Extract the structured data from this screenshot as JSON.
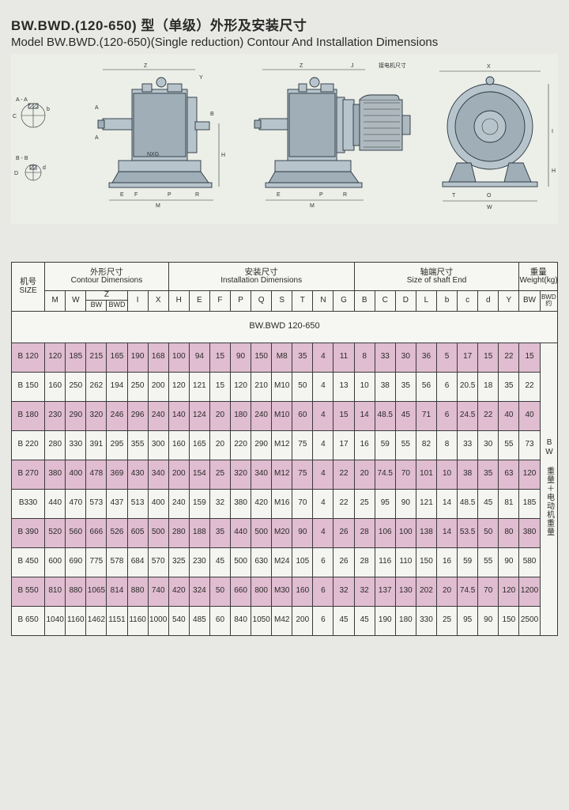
{
  "title": {
    "model_bold": "BW.BWD.(120-650)",
    "cn_suffix": " 型（单级）外形及安装尺寸",
    "en": "Model BW.BWD.(120-650)(Single reduction) Contour And Installation Dimensions"
  },
  "diagram": {
    "labels": [
      "Z",
      "Y",
      "A",
      "B",
      "C",
      "D",
      "d",
      "E",
      "F",
      "P",
      "R",
      "M",
      "J",
      "NXG",
      "H",
      "O",
      "T",
      "W",
      "X",
      "接电机尺寸",
      "A - A",
      "B - B"
    ],
    "colors": {
      "body": "#b7c4cc",
      "body_dark": "#9faeb7",
      "stroke": "#2a3640",
      "bg": "#eceee8"
    }
  },
  "table": {
    "groups": [
      {
        "cn": "机号",
        "en": "SIZE"
      },
      {
        "cn": "外形尺寸",
        "en": "Contour Dimensions"
      },
      {
        "cn": "安装尺寸",
        "en": "Installation Dimensions"
      },
      {
        "cn": "轴端尺寸",
        "en": "Size of shaft End"
      },
      {
        "cn": "重量",
        "en": "Weight(kg)"
      }
    ],
    "symbols": [
      "M",
      "W",
      "Z_BW",
      "Z_BWD",
      "I",
      "X",
      "H",
      "E",
      "F",
      "P",
      "Q",
      "S",
      "T",
      "N",
      "G",
      "B",
      "C",
      "D",
      "L",
      "b",
      "c",
      "d",
      "Y",
      "BW"
    ],
    "z_label": "Z",
    "z_sub": [
      "BW",
      "BWD"
    ],
    "bwd_note": "BWD 约",
    "model_line": "BW.BWD 120-650",
    "side_note": "BW 重量＋电动机重量",
    "rows": [
      {
        "id": "B 120",
        "v": [
          "120",
          "185",
          "215",
          "165",
          "190",
          "168",
          "100",
          "94",
          "15",
          "90",
          "150",
          "M8",
          "35",
          "4",
          "11",
          "8",
          "33",
          "30",
          "36",
          "5",
          "17",
          "15",
          "22",
          "15"
        ]
      },
      {
        "id": "B 150",
        "v": [
          "160",
          "250",
          "262",
          "194",
          "250",
          "200",
          "120",
          "121",
          "15",
          "120",
          "210",
          "M10",
          "50",
          "4",
          "13",
          "10",
          "38",
          "35",
          "56",
          "6",
          "20.5",
          "18",
          "35",
          "22"
        ]
      },
      {
        "id": "B 180",
        "v": [
          "230",
          "290",
          "320",
          "246",
          "296",
          "240",
          "140",
          "124",
          "20",
          "180",
          "240",
          "M10",
          "60",
          "4",
          "15",
          "14",
          "48.5",
          "45",
          "71",
          "6",
          "24.5",
          "22",
          "40",
          "40"
        ]
      },
      {
        "id": "B 220",
        "v": [
          "280",
          "330",
          "391",
          "295",
          "355",
          "300",
          "160",
          "165",
          "20",
          "220",
          "290",
          "M12",
          "75",
          "4",
          "17",
          "16",
          "59",
          "55",
          "82",
          "8",
          "33",
          "30",
          "55",
          "73"
        ]
      },
      {
        "id": "B 270",
        "v": [
          "380",
          "400",
          "478",
          "369",
          "430",
          "340",
          "200",
          "154",
          "25",
          "320",
          "340",
          "M12",
          "75",
          "4",
          "22",
          "20",
          "74.5",
          "70",
          "101",
          "10",
          "38",
          "35",
          "63",
          "120"
        ]
      },
      {
        "id": "B330",
        "v": [
          "440",
          "470",
          "573",
          "437",
          "513",
          "400",
          "240",
          "159",
          "32",
          "380",
          "420",
          "M16",
          "70",
          "4",
          "22",
          "25",
          "95",
          "90",
          "121",
          "14",
          "48.5",
          "45",
          "81",
          "185"
        ]
      },
      {
        "id": "B 390",
        "v": [
          "520",
          "560",
          "666",
          "526",
          "605",
          "500",
          "280",
          "188",
          "35",
          "440",
          "500",
          "M20",
          "90",
          "4",
          "26",
          "28",
          "106",
          "100",
          "138",
          "14",
          "53.5",
          "50",
          "80",
          "380"
        ]
      },
      {
        "id": "B 450",
        "v": [
          "600",
          "690",
          "775",
          "578",
          "684",
          "570",
          "325",
          "230",
          "45",
          "500",
          "630",
          "M24",
          "105",
          "6",
          "26",
          "28",
          "116",
          "110",
          "150",
          "16",
          "59",
          "55",
          "90",
          "580"
        ]
      },
      {
        "id": "B 550",
        "v": [
          "810",
          "880",
          "1065",
          "814",
          "880",
          "740",
          "420",
          "324",
          "50",
          "660",
          "800",
          "M30",
          "160",
          "6",
          "32",
          "32",
          "137",
          "130",
          "202",
          "20",
          "74.5",
          "70",
          "120",
          "1200"
        ]
      },
      {
        "id": "B 650",
        "v": [
          "1040",
          "1160",
          "1462",
          "1151",
          "1160",
          "1000",
          "540",
          "485",
          "60",
          "840",
          "1050",
          "M42",
          "200",
          "6",
          "45",
          "45",
          "190",
          "180",
          "330",
          "25",
          "95",
          "90",
          "150",
          "2500"
        ]
      }
    ]
  },
  "style": {
    "page_bg": "#e8e9e4",
    "row_odd_bg": "#e0bdd0",
    "row_even_bg": "#f4f5f1",
    "border": "#3a3a3a"
  }
}
